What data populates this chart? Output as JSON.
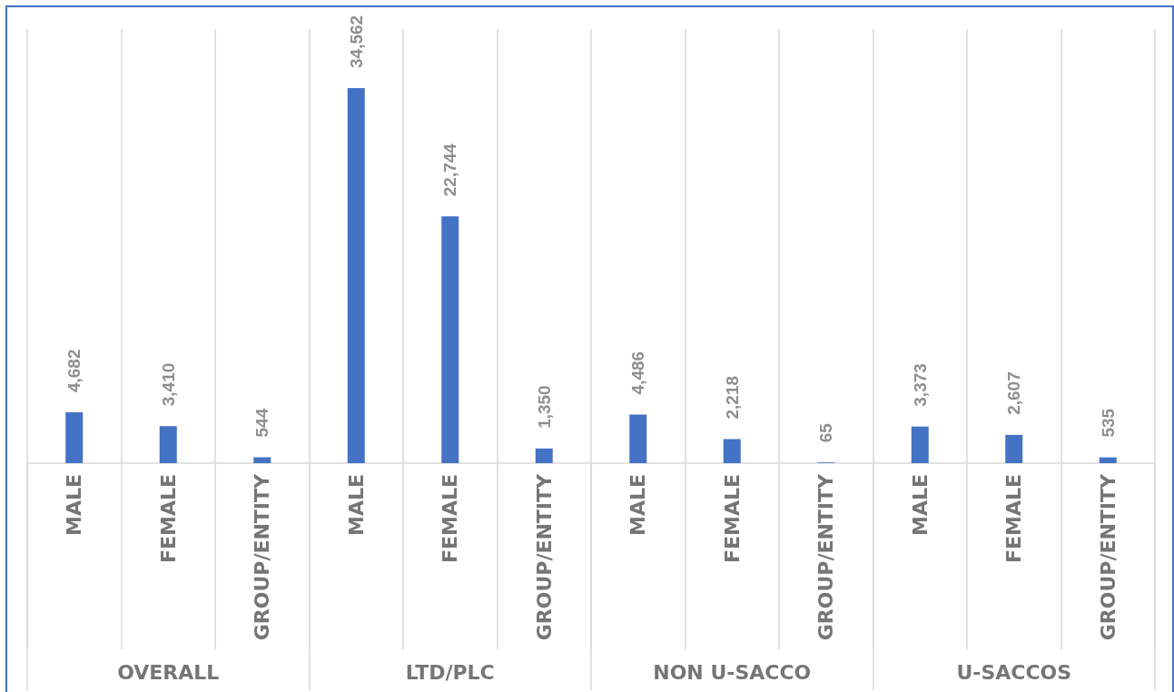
{
  "chart_data": {
    "type": "bar",
    "categories": [
      "MALE",
      "FEMALE",
      "GROUP/ENTITY",
      "MALE",
      "FEMALE",
      "GROUP/ENTITY",
      "MALE",
      "FEMALE",
      "GROUP/ENTITY",
      "MALE",
      "FEMALE",
      "GROUP/ENTITY"
    ],
    "values": [
      4682,
      3410,
      544,
      34562,
      22744,
      1350,
      4486,
      2218,
      65,
      3373,
      2607,
      535
    ],
    "value_labels": [
      "4,682",
      "3,410",
      "544",
      "34,562",
      "22,744",
      "1,350",
      "4,486",
      "2,218",
      "65",
      "3,373",
      "2,607",
      "535"
    ],
    "color": "#4472c4",
    "annotations": [
      "OVERALL",
      "LTD/PLC",
      "NON U-SACCO",
      "U-SACCOS"
    ],
    "grid": "x"
  }
}
